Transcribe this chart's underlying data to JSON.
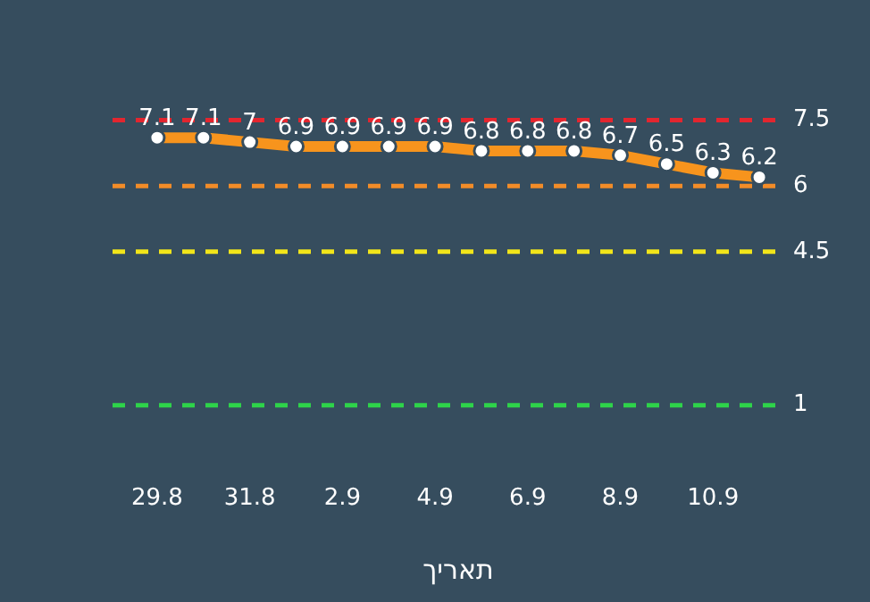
{
  "chart_data": {
    "type": "line",
    "xlabel": "תאריך",
    "categories": [
      "29.8",
      null,
      "31.8",
      null,
      "2.9",
      null,
      "4.9",
      null,
      "6.9",
      null,
      "8.9",
      null,
      "10.9",
      null
    ],
    "series": [
      {
        "color": "#f7941d",
        "values": [
          7.1,
          7.1,
          7,
          6.9,
          6.9,
          6.9,
          6.9,
          6.8,
          6.8,
          6.8,
          6.7,
          6.5,
          6.3,
          6.2
        ]
      }
    ],
    "data_labels": true,
    "marker": "circle",
    "line_style": "solid",
    "grid": false,
    "legend": false,
    "tick_labels": "x",
    "ref_lines": [
      {
        "axis": "y",
        "value": 7.5,
        "label": "7.5",
        "color": "#e3262f",
        "line_style": "dashed"
      },
      {
        "axis": "y",
        "value": 6,
        "label": "6",
        "color": "#f28c28",
        "line_style": "dashed"
      },
      {
        "axis": "y",
        "value": 4.5,
        "label": "4.5",
        "color": "#f2e51a",
        "line_style": "dashed"
      },
      {
        "axis": "y",
        "value": 1,
        "label": "1",
        "color": "#2ed34a",
        "line_style": "dashed"
      }
    ]
  }
}
